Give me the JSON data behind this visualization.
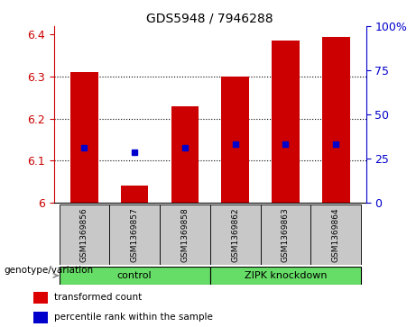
{
  "title": "GDS5948 / 7946288",
  "samples": [
    "GSM1369856",
    "GSM1369857",
    "GSM1369858",
    "GSM1369862",
    "GSM1369863",
    "GSM1369864"
  ],
  "red_values": [
    6.31,
    6.04,
    6.23,
    6.3,
    6.385,
    6.395
  ],
  "blue_values": [
    6.13,
    6.12,
    6.13,
    6.14,
    6.14,
    6.14
  ],
  "ymin": 6.0,
  "ymax": 6.42,
  "y2min": 0,
  "y2max": 100,
  "yticks": [
    6.0,
    6.1,
    6.2,
    6.3,
    6.4
  ],
  "ytick_labels": [
    "6",
    "6.1",
    "6.2",
    "6.3",
    "6.4"
  ],
  "y2ticks": [
    0,
    25,
    50,
    75,
    100
  ],
  "y2tick_labels": [
    "0",
    "25",
    "50",
    "75",
    "100%"
  ],
  "grid_lines": [
    6.1,
    6.2,
    6.3
  ],
  "bar_color": "#cc0000",
  "blue_color": "#0000cc",
  "bar_width": 0.55,
  "group_labels": [
    "control",
    "ZIPK knockdown"
  ],
  "group_ranges": [
    [
      0,
      2
    ],
    [
      3,
      5
    ]
  ],
  "group_color": "#66dd66",
  "sample_box_color": "#c8c8c8",
  "genotype_label": "genotype/variation",
  "legend_transformed": "transformed count",
  "legend_percentile": "percentile rank within the sample",
  "bg_color": "#ffffff",
  "bar_color_legend": "#dd0000",
  "blue_color_legend": "#0000cc"
}
